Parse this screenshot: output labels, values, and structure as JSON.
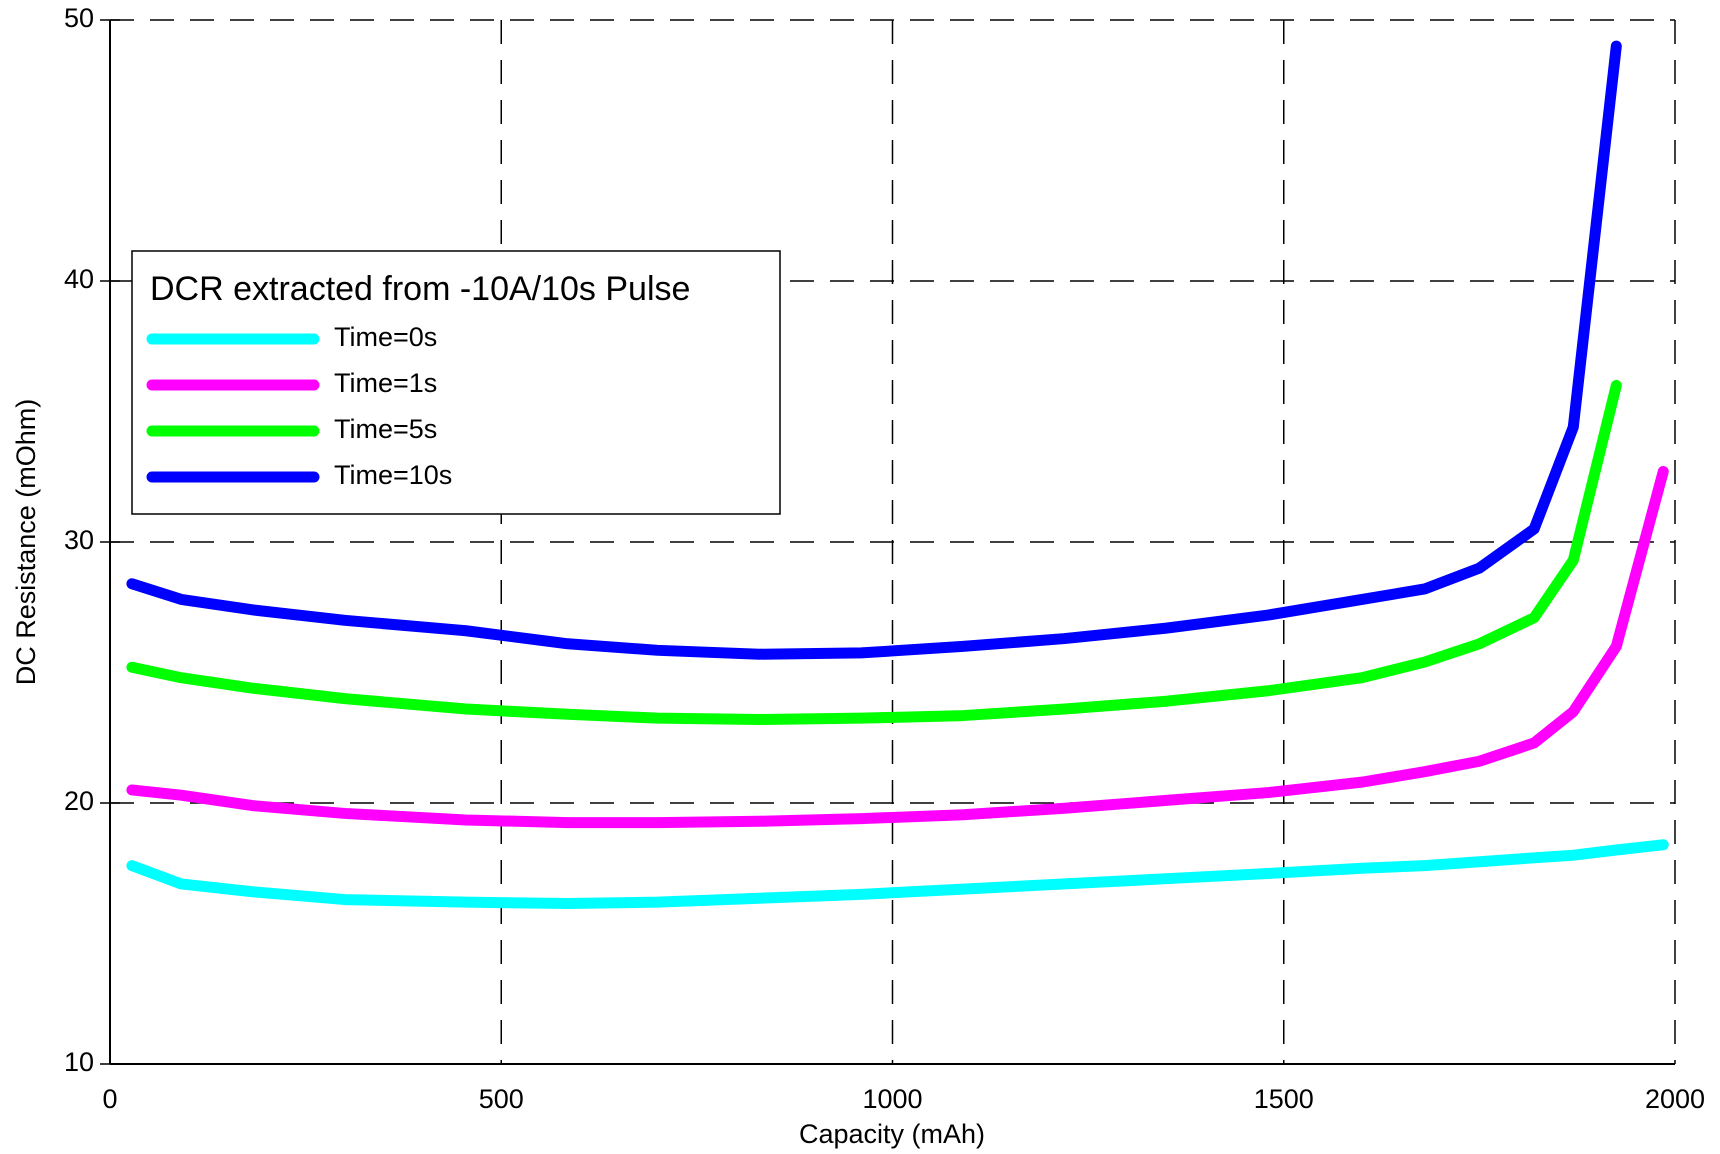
{
  "chart_data": {
    "type": "line",
    "xlabel": "Capacity (mAh)",
    "ylabel": "DC Resistance (mOhm)",
    "legend_title": "DCR extracted from -10A/10s Pulse",
    "legend": "upper-left",
    "x": [
      28,
      91,
      182,
      300,
      455,
      585,
      700,
      830,
      960,
      1090,
      1220,
      1350,
      1480,
      1600,
      1680,
      1750,
      1820,
      1870,
      1925,
      1985
    ],
    "series": [
      {
        "name": "Time=0s",
        "color": "#00ffff",
        "values": [
          17.6,
          16.9,
          16.6,
          16.3,
          16.2,
          16.15,
          16.2,
          16.35,
          16.5,
          16.7,
          16.9,
          17.1,
          17.3,
          17.5,
          17.6,
          17.75,
          17.9,
          18.0,
          18.2,
          18.4
        ]
      },
      {
        "name": "Time=1s",
        "color": "#ff00ff",
        "values": [
          20.5,
          20.3,
          19.9,
          19.6,
          19.35,
          19.25,
          19.25,
          19.3,
          19.4,
          19.55,
          19.8,
          20.1,
          20.4,
          20.8,
          21.2,
          21.6,
          22.3,
          23.5,
          26.0,
          32.7
        ]
      },
      {
        "name": "Time=5s",
        "color": "#00ff00",
        "values": [
          25.2,
          24.8,
          24.4,
          24.0,
          23.6,
          23.4,
          23.25,
          23.2,
          23.25,
          23.35,
          23.6,
          23.9,
          24.3,
          24.8,
          25.4,
          26.1,
          27.1,
          29.3,
          36.0,
          null
        ]
      },
      {
        "name": "Time=10s",
        "color": "#0000ff",
        "values": [
          28.4,
          27.8,
          27.4,
          27.0,
          26.6,
          26.1,
          25.85,
          25.7,
          25.75,
          26.0,
          26.3,
          26.7,
          27.2,
          27.8,
          28.2,
          29.0,
          30.5,
          34.4,
          49.0,
          null
        ]
      }
    ],
    "xlim": [
      0,
      2000
    ],
    "xticks": [
      0,
      500,
      1000,
      1500,
      2000
    ],
    "ylim": [
      10,
      50
    ],
    "yticks": [
      10,
      20,
      30,
      40,
      50
    ],
    "grid": true
  }
}
